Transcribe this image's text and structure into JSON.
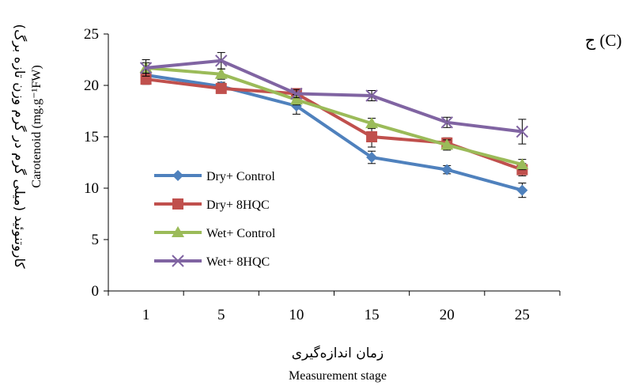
{
  "panel_label": "ج (C)",
  "chart_data": {
    "type": "line",
    "x": [
      1,
      5,
      10,
      15,
      20,
      25
    ],
    "ylim": [
      0,
      25
    ],
    "yticks": [
      0,
      5,
      10,
      15,
      20,
      25
    ],
    "xlabel": "زمان اندازه‌گیری",
    "xlabel_en": "Measurement stage",
    "ylabel": "کاروتنوئید (میلی گرم در گرم وزن تازه برگ)",
    "ylabel_en": "Carotenoid (mg.g⁻¹FW)",
    "grid": false,
    "legend_position": "left-inside",
    "series": [
      {
        "name": "Dry+ Control",
        "color": "#4F81BD",
        "marker": "diamond",
        "values": [
          21.0,
          19.9,
          18.0,
          13.0,
          11.8,
          9.8
        ],
        "errors": [
          0.5,
          0.4,
          0.8,
          0.6,
          0.4,
          0.7
        ]
      },
      {
        "name": "Dry+ 8HQC",
        "color": "#C0504D",
        "marker": "square",
        "values": [
          20.6,
          19.7,
          19.2,
          15.0,
          14.4,
          11.8
        ],
        "errors": [
          0.5,
          0.4,
          0.4,
          1.0,
          0.5,
          0.6
        ]
      },
      {
        "name": "Wet+ Control",
        "color": "#9BBB59",
        "marker": "triangle",
        "values": [
          21.7,
          21.1,
          18.6,
          16.3,
          14.2,
          12.3
        ],
        "errors": [
          0.5,
          0.5,
          0.5,
          0.5,
          0.5,
          0.5
        ]
      },
      {
        "name": "Wet+ 8HQC",
        "color": "#8064A2",
        "marker": "x",
        "values": [
          21.7,
          22.4,
          19.2,
          19.0,
          16.4,
          15.5
        ],
        "errors": [
          0.8,
          0.8,
          0.4,
          0.5,
          0.5,
          1.2
        ]
      }
    ]
  }
}
